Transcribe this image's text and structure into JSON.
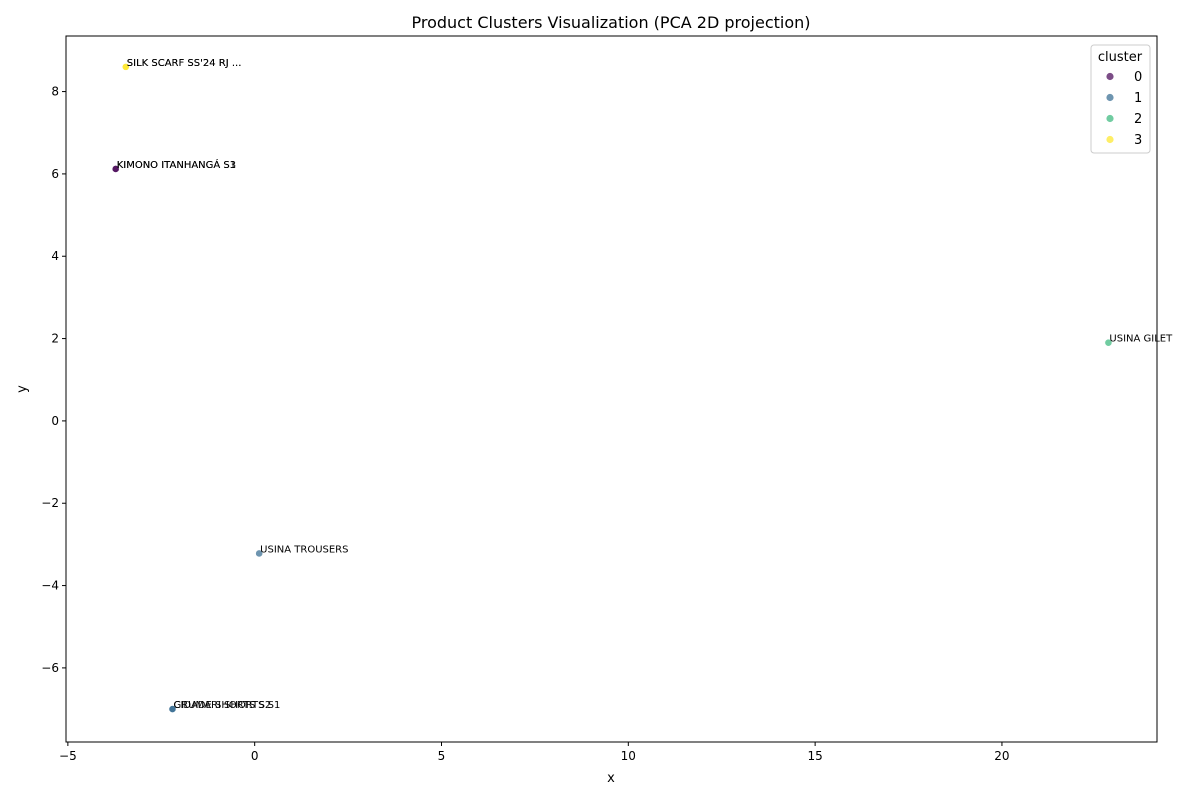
{
  "chart_data": {
    "type": "scatter",
    "title": "Product Clusters Visualization (PCA 2D projection)",
    "xlabel": "x",
    "ylabel": "y",
    "xlim": [
      -5.05,
      24.15
    ],
    "ylim": [
      -7.8,
      9.35
    ],
    "xticks": [
      -5,
      0,
      5,
      10,
      15,
      20
    ],
    "yticks": [
      -6,
      -4,
      -2,
      0,
      2,
      4,
      6,
      8
    ],
    "grid": false,
    "legend": {
      "title": "cluster",
      "placement": "top-right",
      "entries": [
        {
          "label": "0",
          "color": "#440154"
        },
        {
          "label": "1",
          "color": "#31688e"
        },
        {
          "label": "2",
          "color": "#35b779"
        },
        {
          "label": "3",
          "color": "#fde725"
        }
      ]
    },
    "point_opacity": 0.7,
    "points": [
      {
        "x": -3.45,
        "y": 8.6,
        "cluster": 3,
        "label": "SILK SCARF SS'24 RJ ..."
      },
      {
        "x": -3.45,
        "y": 8.6,
        "cluster": 3,
        "label": "SILK SCARF SS'24 RJ ..."
      },
      {
        "x": -3.72,
        "y": 6.12,
        "cluster": 0,
        "label": "KIMONO ITANHANGÁ S1"
      },
      {
        "x": -3.72,
        "y": 6.12,
        "cluster": 0,
        "label": "KIMONO ITANHANGÁ S3"
      },
      {
        "x": 22.85,
        "y": 1.9,
        "cluster": 2,
        "label": "USINA GILET"
      },
      {
        "x": 0.12,
        "y": -3.22,
        "cluster": 1,
        "label": "USINA TROUSERS"
      },
      {
        "x": -2.2,
        "y": -7.0,
        "cluster": 1,
        "label": "GRUMARI SHORTS S1"
      },
      {
        "x": -2.2,
        "y": -7.0,
        "cluster": 1,
        "label": "CIDADE SHORTS S2"
      }
    ]
  }
}
